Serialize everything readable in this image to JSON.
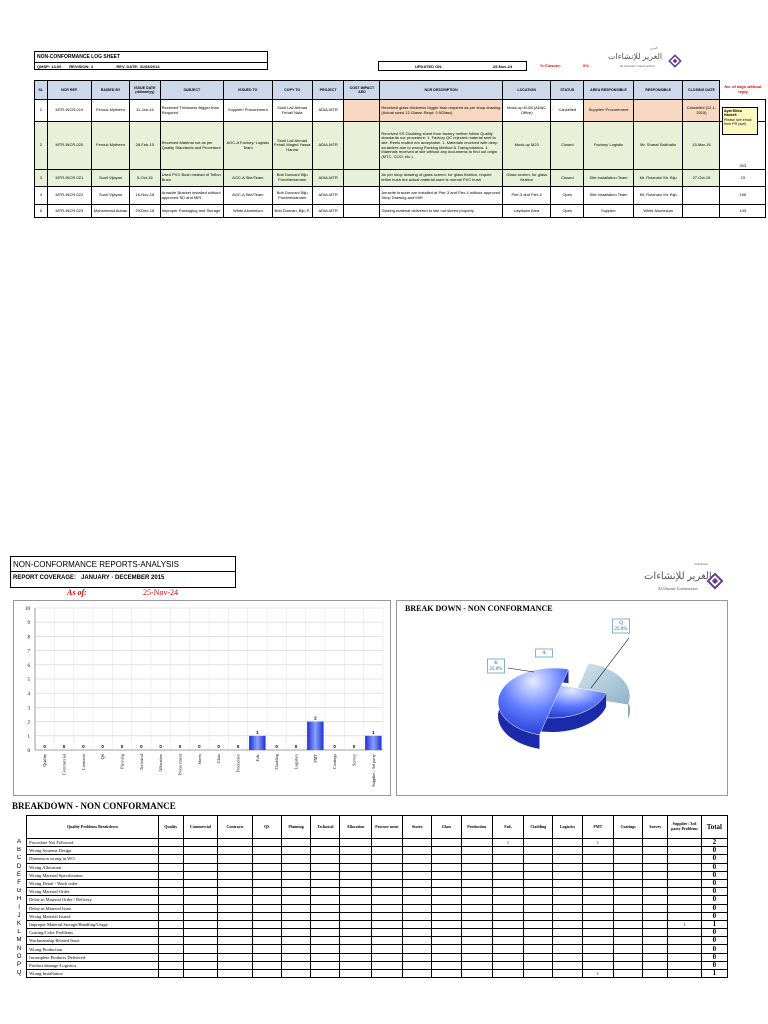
{
  "log_sheet": {
    "title": "NON-CONFORMANCE LOG SHEET",
    "meta": {
      "qmsp_label": "QMSP:",
      "qmsp": "14-06",
      "revision_label": "REVISION:",
      "revision": "3",
      "rev_date_label": "REV. DATE:",
      "rev_date": "31/08/2014"
    },
    "updated_label": "UPDATED ON:",
    "updated_on": "25-Nov-24",
    "closure_label": "% Closure:",
    "closure_value": "0%",
    "days_note": "No. of days without reply",
    "columns": [
      "SL",
      "NCR REF.",
      "RAISED BY",
      "ISSUE DATE (dd/mm/yy)",
      "SUBJECT",
      "ISSUED TO",
      "COPY TO",
      "PROJECT",
      "COST IMPACT AED",
      "NCR DESCRIPTION",
      "LOCATION",
      "STATUS",
      "AREA RESPONSIBLE",
      "RESPONSIBLE",
      "CLOSING DATE",
      ""
    ],
    "rows": [
      {
        "sl": "1",
        "ref": "MTR-INCR-019",
        "raised": "Ferouk Mytheen",
        "date": "11-Jan-16",
        "subject": "Received Thickness Bigger than Required",
        "issued": "Supplier/ Procurement",
        "copy": "Sunil Lal/ Ahmad Fehal/ Nuta",
        "project": "ADIA-MTR",
        "cost": "",
        "desc": "Received glass thickness bigger than required as per shop drawing (Actual sized 12 Glassr Reqd: 9.5Glass)",
        "location": "Mock-up M-68 (ADAC Office)",
        "status": "Cancelled",
        "area": "Supplier/ Procurement",
        "resp": "",
        "closing": "Cancelled (12-1-2015)",
        "days": ""
      },
      {
        "sl": "2",
        "ref": "MTR-INCR-020",
        "raised": "Ferouk Mytheen",
        "date": "28-Feb-15",
        "subject": "Received Material not as per Quality Standards and Procedure",
        "issued": "AGC-A Factory/ Logistic Team",
        "copy": "Sunil Lal/ Ahmad Fehal/ Maged Yassa Hanna",
        "project": "ADIA-MTR",
        "cost": "",
        "desc": "Received SS Cladding sheet from factory neither follow Quality standards nor procedure: 1. Factory QC rejected material sent to site. Reels mailed not acceptable. 1. Materials received with deep scratches due to wrong Packing Method & Transportation. 1. Materials received at site without any documents to find out origin (MTC, COO, etc.)",
        "location": "Mock-up M23",
        "status": "Closed",
        "area": "Factory/ Logistic",
        "resp": "Mr. Sharaf Saikhalto",
        "closing": "15-Mar-16",
        "days": "393"
      },
      {
        "sl": "3",
        "ref": "MTR-INCR-021",
        "raised": "Sunil Vijayan",
        "date": "5-Oct-15",
        "subject": "Used PVC Bush instead of Teflon Bush",
        "issued": "AGC-A Site/Team",
        "copy": "Bob Duncan/ Biju Poruthenlamam",
        "project": "ADIA-MTR",
        "cost": "",
        "desc": "As per shop drawing of glass screen, for glass fixation, require teflon bush but actual material used is normal PVC bush",
        "location": "Glass screen, for glass fixation",
        "status": "Closed",
        "area": "Site Installation Team",
        "resp": "Mr. Rolando/ Mr. Biju",
        "closing": "27-Oct-15",
        "days": "23"
      },
      {
        "sl": "4",
        "ref": "MTR-INCR-022",
        "raised": "Sunil Vijayan",
        "date": "16-Nov-15",
        "subject": "Anracite Bracket installed without approved SD and MIR",
        "issued": "AGC-A Site/Team",
        "copy": "Bob Duncan/ Biju Poruthenlamam",
        "project": "ADIA-MTR",
        "cost": "",
        "desc": "Anracite bracket are installed at Pier-3 and Pier-4 without approved Shop Drawing and MIR",
        "location": "Pier-3 and Pier-4",
        "status": "Open",
        "area": "Site Installation Team",
        "resp": "Mr. Rolando/ Mr. Biju",
        "closing": "",
        "days": "155"
      },
      {
        "sl": "5",
        "ref": "MTR-INCR-023",
        "raised": "Mohammad Adnan",
        "date": "29-Dec-15",
        "subject": "Improper Packaging and Storage",
        "issued": "White Aluminium",
        "copy": "Bob Duncan, Biju P.",
        "project": "ADIA-MTR",
        "cost": "",
        "desc": "Glazing material delivered to site not stored properly",
        "location": "Laydown Area",
        "status": "Open",
        "area": "Supplier",
        "resp": "White Aluminium",
        "closing": "",
        "days": "143"
      }
    ],
    "comment": {
      "title": "Ayat Mirza Haneef:",
      "text": "Please see email from PR (suri)"
    }
  },
  "brand": {
    "arabic": "الغرير للإنشاءات",
    "english": "Al Ghurair Construction",
    "small_ar": "الغرير",
    "small_en": "Aluminium"
  },
  "analysis": {
    "title": "NON-CONFORMANCE REPORTS-ANALYSIS",
    "coverage": "REPORT COVERAGE:   JANUARY - DECEMBER 2015",
    "as_of_label": "As of:",
    "as_of": "25-Nov-24"
  },
  "chart_data": [
    {
      "type": "bar",
      "categories": [
        "Quality",
        "Commercial",
        "Contracts",
        "QS",
        "Planning",
        "Technical",
        "Allocation",
        "Procurement",
        "Stores",
        "Glass",
        "Production",
        "Fab.",
        "Cladding",
        "Logistics",
        "PMT",
        "Coatings",
        "Survey",
        "Supplier / 3rd party"
      ],
      "values": [
        0,
        0,
        0,
        0,
        0,
        0,
        0,
        0,
        0,
        0,
        0,
        1,
        0,
        0,
        2,
        0,
        0,
        1
      ],
      "ylim": [
        0,
        10
      ],
      "yticks": [
        0,
        1,
        2,
        3,
        4,
        5,
        6,
        7,
        8,
        9,
        10
      ],
      "grid": true,
      "title": "",
      "xlabel": "",
      "ylabel": ""
    },
    {
      "type": "pie",
      "title": "BREAK DOWN - NON CONFORMANCE",
      "slices": [
        {
          "label": "Q",
          "value": 1,
          "percent": "25.0%",
          "color": "#a9c8dc"
        },
        {
          "label": "K",
          "value": 1,
          "percent": "25.0%",
          "color": "#3a5cf0"
        },
        {
          "label": "A",
          "value": 2,
          "percent": "50.0%",
          "color": "#2c46e0"
        }
      ],
      "labels": [
        {
          "text": "Q\n25.0%"
        },
        {
          "text": "K\n25.0%"
        },
        {
          "text": "A"
        }
      ]
    }
  ],
  "breakdown": {
    "title": "BREAKDOWN - NON CONFORMANCE",
    "header_first": "Quality Problems Breakdown",
    "columns": [
      "Quality",
      "Commercial",
      "Contracts",
      "QS",
      "Planning",
      "Technical",
      "Allocation",
      "Procure ment",
      "Stores",
      "Glass",
      "Production",
      "Fab.",
      "Cladding",
      "Logistics",
      "PMT",
      "Coatings",
      "Survey",
      "Supplier / 3rd party Problems"
    ],
    "total_label": "Total",
    "rows": [
      {
        "letter": "A",
        "desc": "Procedure Not Followed",
        "vals": {
          "11": "1",
          "14": "1"
        },
        "total": "2"
      },
      {
        "letter": "B",
        "desc": "Wrong Systems Design",
        "vals": {},
        "total": "0"
      },
      {
        "letter": "C",
        "desc": "Dimension wrong in WO",
        "vals": {},
        "total": "0"
      },
      {
        "letter": "D",
        "desc": "Wrong Allocation",
        "vals": {},
        "total": "0"
      },
      {
        "letter": "E",
        "desc": "Wrong Material Specification",
        "vals": {},
        "total": "0"
      },
      {
        "letter": "F",
        "desc": "Wrong Detail - Work order",
        "vals": {},
        "total": "0"
      },
      {
        "letter": "G",
        "desc": "Wrong Material Order",
        "vals": {},
        "total": "0"
      },
      {
        "letter": "H",
        "desc": "Delay in Material Order / Delivery",
        "vals": {},
        "total": "0"
      },
      {
        "letter": "I",
        "desc": "Delay in Material Issue",
        "vals": {},
        "total": "0"
      },
      {
        "letter": "J",
        "desc": "Wrong Material Issued",
        "vals": {},
        "total": "0"
      },
      {
        "letter": "K",
        "desc": "Improper Material Storage/Handling/Usage",
        "vals": {
          "17": "1"
        },
        "total": "1"
      },
      {
        "letter": "L",
        "desc": "Coating/Color Problems",
        "vals": {},
        "total": "0"
      },
      {
        "letter": "M",
        "desc": "Workmanship Related Issue",
        "vals": {},
        "total": "0"
      },
      {
        "letter": "N",
        "desc": "Wrong Production",
        "vals": {},
        "total": "0"
      },
      {
        "letter": "O",
        "desc": "Incomplete Products Delivered",
        "vals": {},
        "total": "0"
      },
      {
        "letter": "P",
        "desc": "Product damage-Logistics",
        "vals": {},
        "total": "0"
      },
      {
        "letter": "Q",
        "desc": "Wrong Installation",
        "vals": {
          "14": "1"
        },
        "total": "1"
      }
    ]
  }
}
